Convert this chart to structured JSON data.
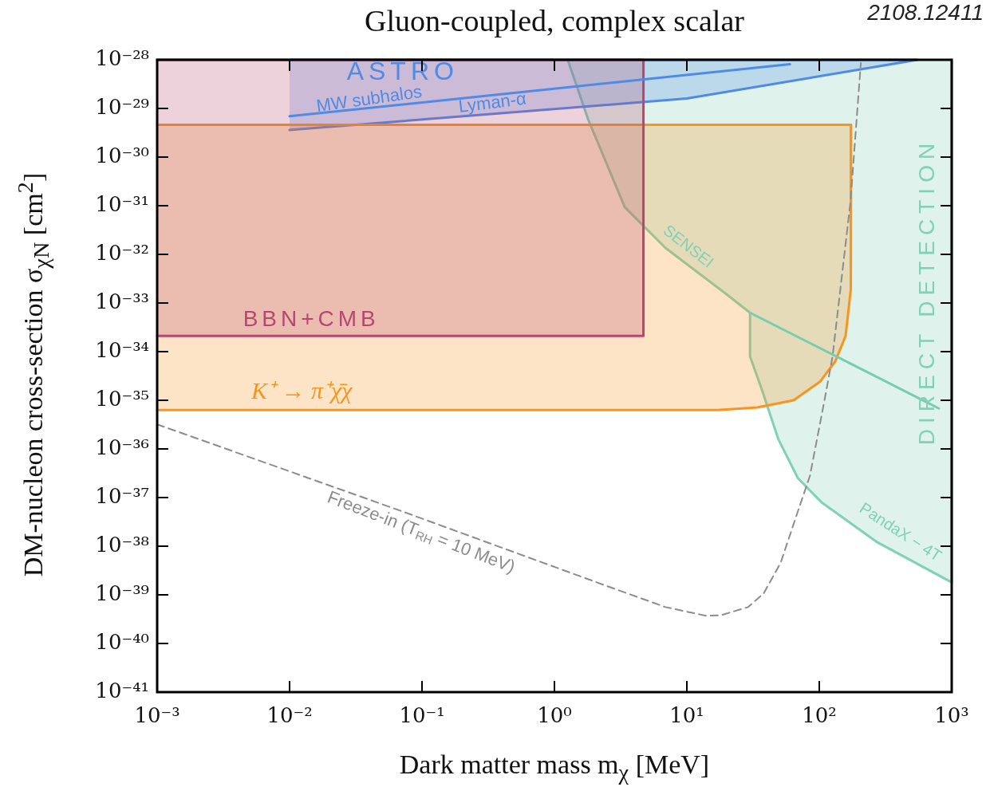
{
  "chart_data": {
    "type": "area",
    "title": "Gluon-coupled, complex scalar",
    "xlabel": "Dark matter mass  m$_{χ}$ [MeV]",
    "ylabel": "DM-nucleon cross-section  σ$_{χN}$ [cm$^{2}$]",
    "log": "xy",
    "grid": false,
    "legend": false,
    "marker": "none",
    "xlim": [
      0.001,
      1000
    ],
    "ylim": [
      1e-41,
      1e-28
    ],
    "xticks": [
      {
        "value": 0.001,
        "label": "10⁻³"
      },
      {
        "value": 0.01,
        "label": "10⁻²"
      },
      {
        "value": 0.1,
        "label": "10⁻¹"
      },
      {
        "value": 1,
        "label": "10⁰"
      },
      {
        "value": 10,
        "label": "10¹"
      },
      {
        "value": 100,
        "label": "10²"
      },
      {
        "value": 1000,
        "label": "10³"
      }
    ],
    "yticks": [
      {
        "value": 1e-41,
        "label": "10⁻⁴¹"
      },
      {
        "value": 1e-40,
        "label": "10⁻⁴⁰"
      },
      {
        "value": 1e-39,
        "label": "10⁻³⁹"
      },
      {
        "value": 1e-38,
        "label": "10⁻³⁸"
      },
      {
        "value": 1e-37,
        "label": "10⁻³⁷"
      },
      {
        "value": 1e-36,
        "label": "10⁻³⁶"
      },
      {
        "value": 1e-35,
        "label": "10⁻³⁵"
      },
      {
        "value": 1e-34,
        "label": "10⁻³⁴"
      },
      {
        "value": 1e-33,
        "label": "10⁻³³"
      },
      {
        "value": 1e-32,
        "label": "10⁻³²"
      },
      {
        "value": 1e-31,
        "label": "10⁻³¹"
      },
      {
        "value": 1e-30,
        "label": "10⁻³⁰"
      },
      {
        "value": 1e-29,
        "label": "10⁻²⁹"
      },
      {
        "value": 1e-28,
        "label": "10⁻²⁸"
      }
    ],
    "series": [
      {
        "type": "area",
        "color": "#b8466f",
        "x": [
          0.001,
          4.7,
          4.7,
          0.001
        ],
        "values": [
          2.1e-34,
          2.1e-34,
          1e-28,
          1e-28
        ]
      },
      {
        "type": "area",
        "color": "#f7951e",
        "x": [
          0.001,
          174,
          173,
          158,
          132,
          101,
          64,
          34,
          17,
          0.001
        ],
        "values": [
          4.6e-30,
          4.6e-30,
          1.9e-33,
          2.1e-34,
          6.3e-35,
          2.4e-35,
          1e-35,
          7.1e-36,
          6.3e-36,
          6.3e-36
        ]
      },
      {
        "type": "area",
        "color": "#4f8ae6",
        "x": [
          0.01,
          10,
          550,
          0.01
        ],
        "values": [
          3.6e-30,
          1.6e-29,
          1e-28,
          1e-28
        ]
      },
      {
        "type": "line",
        "color": "#4f8ae6",
        "x": [
          0.01,
          60
        ],
        "values": [
          6.9e-30,
          8.1e-29
        ]
      },
      {
        "type": "area",
        "color": "#80d1b5",
        "x": [
          1.26,
          1.8,
          3.4,
          6.9,
          20,
          30,
          30,
          37,
          49,
          69,
          104,
          275,
          1000,
          1000
        ],
        "values": [
          1e-28,
          5.9e-30,
          9.3e-32,
          1.35e-32,
          1.5e-33,
          6.3e-34,
          8e-35,
          1.6e-35,
          1.6e-36,
          2.5e-37,
          8e-38,
          1.2e-38,
          1.8e-39,
          1e-28
        ]
      },
      {
        "type": "line",
        "color": "#78cdb0",
        "x": [
          30,
          174,
          800
        ],
        "values": [
          6.3e-34,
          5.6e-35,
          6.8e-36
        ]
      },
      {
        "type": "line",
        "color": "#8c8c8c",
        "line_style": "dashed",
        "x": [
          0.001,
          0.067,
          2.8,
          6.9,
          14,
          18,
          29,
          38,
          51,
          71,
          85,
          110,
          126,
          172,
          206
        ],
        "values": [
          3.2e-36,
          5.5e-38,
          1.35e-39,
          5.6e-40,
          3.7e-40,
          3.8e-40,
          5.6e-40,
          1.07e-39,
          4.5e-39,
          6.6e-38,
          2.8e-37,
          1.07e-35,
          8e-35,
          1.2e-31,
          8.6e-29
        ]
      }
    ],
    "annotations": [
      "ASTRO",
      "MW subhalos",
      "Lyman-α",
      "BBN+CMB",
      "K⁺ → π⁺χ̄χ",
      "SENSEI",
      "DIRECT DETECTION",
      "PandaX − 4T",
      "Freeze-in (T$_{RH}$ = 10 MeV)",
      "2108.12411"
    ]
  }
}
